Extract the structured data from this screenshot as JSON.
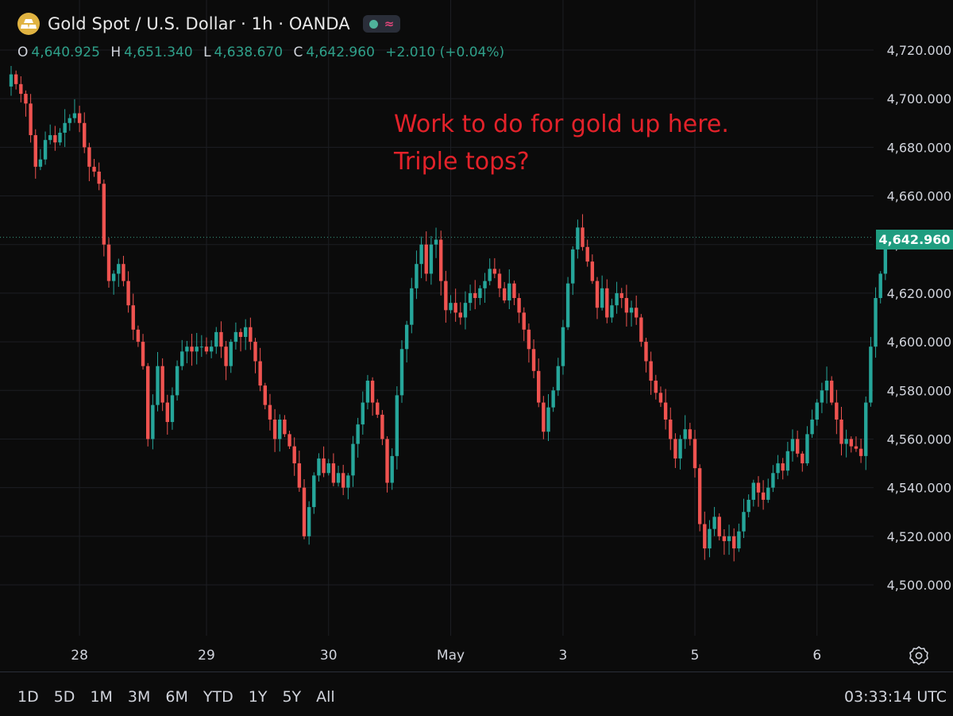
{
  "header": {
    "title": "Gold Spot / U.S. Dollar · 1h · OANDA",
    "ohlc": {
      "o_label": "O",
      "o_value": "4,640.925",
      "h_label": "H",
      "h_value": "4,651.340",
      "l_label": "L",
      "l_value": "4,638.670",
      "c_label": "C",
      "c_value": "4,642.960",
      "change": "+2.010 (+0.04%)"
    }
  },
  "annotation": {
    "line1": "Work to do for gold up here.",
    "line2": "Triple tops?"
  },
  "last_price_label": "4,642.960",
  "toolbar": {
    "ranges": [
      "1D",
      "5D",
      "1M",
      "3M",
      "6M",
      "YTD",
      "1Y",
      "5Y",
      "All"
    ],
    "clock": "03:33:14 UTC"
  },
  "colors": {
    "up": "#26a69a",
    "down": "#ef5350",
    "annotation": "#e3222a",
    "background": "#0b0b0b"
  },
  "chart_data": {
    "type": "candlestick",
    "ylim": [
      4480,
      4730
    ],
    "y_ticks": [
      {
        "value": 4720,
        "label": "4,720.000"
      },
      {
        "value": 4700,
        "label": "4,700.000"
      },
      {
        "value": 4680,
        "label": "4,680.000"
      },
      {
        "value": 4660,
        "label": "4,660.000"
      },
      {
        "value": 4640,
        "label": "4,640.000"
      },
      {
        "value": 4620,
        "label": "4,620.000"
      },
      {
        "value": 4600,
        "label": "4,600.000"
      },
      {
        "value": 4580,
        "label": "4,580.000"
      },
      {
        "value": 4560,
        "label": "4,560.000"
      },
      {
        "value": 4540,
        "label": "4,540.000"
      },
      {
        "value": 4520,
        "label": "4,520.000"
      },
      {
        "value": 4500,
        "label": "4,500.000"
      }
    ],
    "x_ticks": [
      {
        "label": "28",
        "bar": 14
      },
      {
        "label": "29",
        "bar": 40
      },
      {
        "label": "30",
        "bar": 65
      },
      {
        "label": "May",
        "bar": 90
      },
      {
        "label": "3",
        "bar": 113
      },
      {
        "label": "5",
        "bar": 140
      },
      {
        "label": "6",
        "bar": 165
      }
    ],
    "last_price": 4642.96,
    "path": [
      4705,
      4710,
      4706,
      4702,
      4698,
      4685,
      4672,
      4675,
      4683,
      4685,
      4682,
      4686,
      4690,
      4692,
      4694,
      4690,
      4680,
      4672,
      4670,
      4665,
      4640,
      4625,
      4628,
      4632,
      4625,
      4615,
      4605,
      4600,
      4590,
      4560,
      4574,
      4590,
      4575,
      4567,
      4578,
      4590,
      4596,
      4598,
      4596,
      4598,
      4598,
      4596,
      4598,
      4604,
      4598,
      4590,
      4600,
      4604,
      4602,
      4606,
      4600,
      4592,
      4582,
      4574,
      4568,
      4560,
      4568,
      4562,
      4557,
      4550,
      4540,
      4520,
      4532,
      4545,
      4552,
      4546,
      4550,
      4542,
      4546,
      4540,
      4545,
      4558,
      4566,
      4575,
      4584,
      4575,
      4570,
      4560,
      4542,
      4553,
      4578,
      4597,
      4607,
      4622,
      4632,
      4640,
      4628,
      4640,
      4642,
      4625,
      4613,
      4616,
      4612,
      4610,
      4616,
      4620,
      4618,
      4622,
      4625,
      4630,
      4628,
      4622,
      4617,
      4624,
      4618,
      4612,
      4605,
      4597,
      4588,
      4575,
      4563,
      4573,
      4580,
      4590,
      4606,
      4624,
      4638,
      4647,
      4639,
      4633,
      4625,
      4614,
      4622,
      4610,
      4615,
      4620,
      4618,
      4612,
      4614,
      4610,
      4600,
      4592,
      4584,
      4579,
      4575,
      4568,
      4560,
      4552,
      4560,
      4564,
      4560,
      4548,
      4525,
      4515,
      4523,
      4528,
      4520,
      4518,
      4520,
      4515,
      4522,
      4530,
      4535,
      4542,
      4538,
      4535,
      4540,
      4546,
      4550,
      4547,
      4555,
      4560,
      4554,
      4550,
      4562,
      4568,
      4575,
      4580,
      4584,
      4575,
      4568,
      4558,
      4560,
      4557,
      4556,
      4553,
      4575,
      4598,
      4618,
      4628,
      4641,
      4643
    ]
  }
}
